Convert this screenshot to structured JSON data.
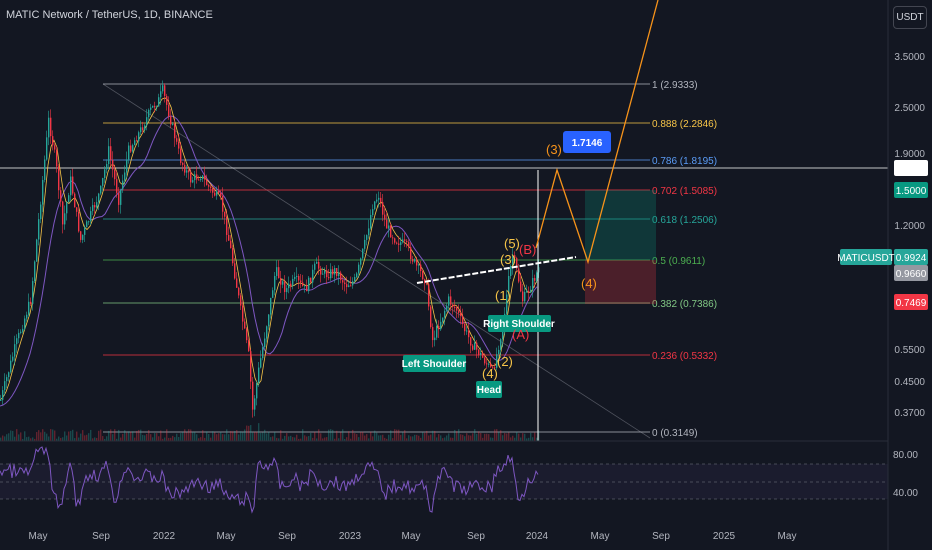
{
  "header": {
    "title": "MATIC Network / TetherUS, 1D, BINANCE",
    "currency_button": "USDT"
  },
  "price_axis": {
    "ticks": [
      "3.5000",
      "2.5000",
      "1.9000",
      "1.2000",
      "0.5500",
      "0.4500",
      "0.3700"
    ]
  },
  "price_labels": [
    {
      "value": "1.7387",
      "bg": "#ffffff",
      "fg": "#131722"
    },
    {
      "value": "1.5000",
      "bg": "#089981",
      "fg": "#ffffff"
    },
    {
      "value": "0.9924",
      "bg": "#26a69a",
      "fg": "#ffffff",
      "name": "MATICUSDT"
    },
    {
      "value": "0.9660",
      "bg": "#9598a1",
      "fg": "#ffffff"
    },
    {
      "value": "0.7469",
      "bg": "#f23645",
      "fg": "#ffffff"
    }
  ],
  "time_axis": [
    "May",
    "Sep",
    "2022",
    "May",
    "Sep",
    "2023",
    "May",
    "Sep",
    "2024",
    "May",
    "Sep",
    "2025",
    "May"
  ],
  "rsi_axis": [
    "80.00",
    "40.00"
  ],
  "fib_levels": [
    {
      "label": "1 (2.9333)",
      "color": "#b2b5be"
    },
    {
      "label": "0.888 (2.2846)",
      "color": "#f7c548"
    },
    {
      "label": "0.786 (1.8195)",
      "color": "#5b9cf6"
    },
    {
      "label": "0.702 (1.5085)",
      "color": "#f23645"
    },
    {
      "label": "0.618 (1.2506)",
      "color": "#26a69a"
    },
    {
      "label": "0.5 (0.9611)",
      "color": "#4caf50"
    },
    {
      "label": "0.382 (0.7386)",
      "color": "#81c784"
    },
    {
      "label": "0.236 (0.5332)",
      "color": "#f23645"
    },
    {
      "label": "0 (0.3149)",
      "color": "#b2b5be"
    }
  ],
  "pattern_labels": {
    "left_shoulder": "Left Shoulder",
    "head": "Head",
    "right_shoulder": "Right Shoulder",
    "target_price": "1.7146"
  },
  "wave_labels": {
    "w3_target": "(3)",
    "w4_target": "(4)",
    "w5": "(5)",
    "w3": "(3)",
    "wB": "(B)",
    "w1": "(1)",
    "w2": "(2)",
    "w4": "(4)",
    "wA": "(A)"
  },
  "colors": {
    "background": "#131722",
    "up": "#26a69a",
    "down": "#f23645",
    "rsi": "#7e57c2",
    "projection": "#f7931a",
    "target_box": "#2962ff"
  }
}
